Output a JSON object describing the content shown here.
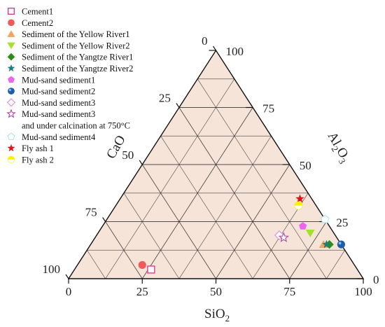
{
  "chart_data": {
    "type": "scatter",
    "subtype": "ternary",
    "title": "",
    "axes": {
      "bottom": {
        "name": "SiO2",
        "label_main": "SiO",
        "label_sub": "2",
        "ticks": [
          "0",
          "25",
          "50",
          "75",
          "100"
        ]
      },
      "right": {
        "name": "Al2O3",
        "label_main": "Al",
        "label_sub1": "2",
        "label_mid": "O",
        "label_sub2": "3",
        "ticks": [
          "0",
          "25",
          "50",
          "75",
          "100"
        ]
      },
      "left": {
        "name": "CaO",
        "label": "CaO",
        "ticks": [
          "0",
          "25",
          "50",
          "75",
          "100"
        ]
      }
    },
    "grid": true,
    "background_color": "#f6e4d9",
    "legend_position": "top-left",
    "series": [
      {
        "name": "Cement1",
        "marker": "square-open",
        "color": "#d6338a",
        "points": [
          {
            "sio2": 26,
            "al2o3": 4,
            "cao": 70
          }
        ]
      },
      {
        "name": "Cement2",
        "marker": "circle",
        "color": "#f05a5a",
        "points": [
          {
            "sio2": 22,
            "al2o3": 6,
            "cao": 72
          }
        ]
      },
      {
        "name": "Sediment of the Yellow River1",
        "marker": "triangle-up",
        "color": "#f4a460",
        "points": [
          {
            "sio2": 79,
            "al2o3": 15,
            "cao": 6
          }
        ]
      },
      {
        "name": "Sediment of the Yellow River2",
        "marker": "triangle-down",
        "color": "#a5e02b",
        "points": [
          {
            "sio2": 72,
            "al2o3": 20,
            "cao": 8
          }
        ]
      },
      {
        "name": "Sediment of the Yangtze River1",
        "marker": "diamond",
        "color": "#2e8b1a",
        "points": [
          {
            "sio2": 81,
            "al2o3": 15,
            "cao": 4
          }
        ]
      },
      {
        "name": "Sediment of the Yangtze River2",
        "marker": "star-filled",
        "color": "#1a8080",
        "points": [
          {
            "sio2": 80,
            "al2o3": 15,
            "cao": 5
          }
        ]
      },
      {
        "name": "Mud-sand sediment1",
        "marker": "pentagon",
        "color": "#ee66ee",
        "points": [
          {
            "sio2": 68,
            "al2o3": 23,
            "cao": 9
          }
        ]
      },
      {
        "name": "Mud-sand sediment2",
        "marker": "sphere",
        "color": "#1f5fa8",
        "points": [
          {
            "sio2": 85,
            "al2o3": 15,
            "cao": 0
          }
        ]
      },
      {
        "name": "Mud-sand sediment3",
        "marker": "diamond-open",
        "color": "#d894e0",
        "points": [
          {
            "sio2": 62,
            "al2o3": 19,
            "cao": 19
          }
        ]
      },
      {
        "name": "Mud-sand sediment3",
        "name_line2": "and under calcination at 750°C",
        "marker": "star-open",
        "color": "#a64ca6",
        "points": [
          {
            "sio2": 64,
            "al2o3": 18,
            "cao": 18
          }
        ]
      },
      {
        "name": "Mud-sand sediment4",
        "marker": "pentagon-open",
        "color": "#b0e8e8",
        "points": [
          {
            "sio2": 74,
            "al2o3": 26,
            "cao": 0
          }
        ]
      },
      {
        "name": "Fly ash 1",
        "marker": "star-filled",
        "color": "#e3111a",
        "points": [
          {
            "sio2": 61,
            "al2o3": 35,
            "cao": 4
          }
        ]
      },
      {
        "name": "Fly ash 2",
        "marker": "half-circle",
        "color": "#ffee00",
        "points": [
          {
            "sio2": 62,
            "al2o3": 32,
            "cao": 6
          }
        ]
      }
    ]
  }
}
